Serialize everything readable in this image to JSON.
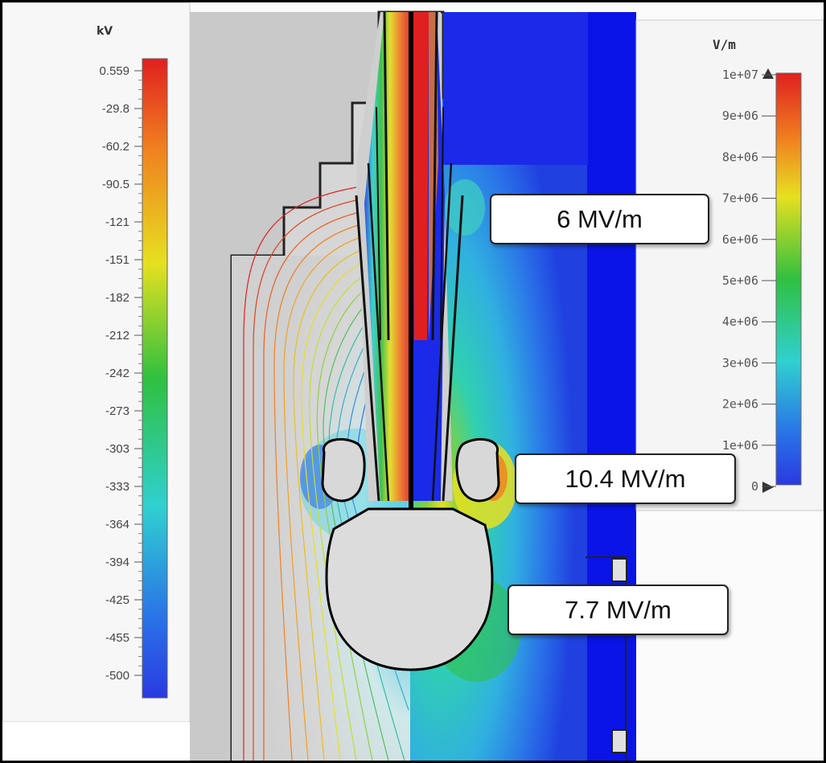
{
  "potential_scale": {
    "unit": "kV",
    "ticks": [
      "0.559",
      "-29.8",
      "-60.2",
      "-90.5",
      "-121",
      "-151",
      "-182",
      "-212",
      "-242",
      "-273",
      "-303",
      "-333",
      "-364",
      "-394",
      "-425",
      "-455",
      "-500"
    ]
  },
  "field_scale": {
    "unit": "V/m",
    "ticks": [
      "1e+07",
      "9e+06",
      "8e+06",
      "7e+06",
      "6e+06",
      "5e+06",
      "4e+06",
      "3e+06",
      "2e+06",
      "1e+06",
      "0"
    ]
  },
  "callouts": {
    "upper": "6 MV/m",
    "middle": "10.4 MV/m",
    "lower": "7.7 MV/m"
  },
  "colors": {
    "red": "#e02020",
    "orange": "#f08020",
    "yellow": "#e6e020",
    "green": "#30c040",
    "cyan": "#30d0d0",
    "blue": "#2040e0",
    "deep_blue": "#0a14e6",
    "metal": "#d8d8d8"
  }
}
